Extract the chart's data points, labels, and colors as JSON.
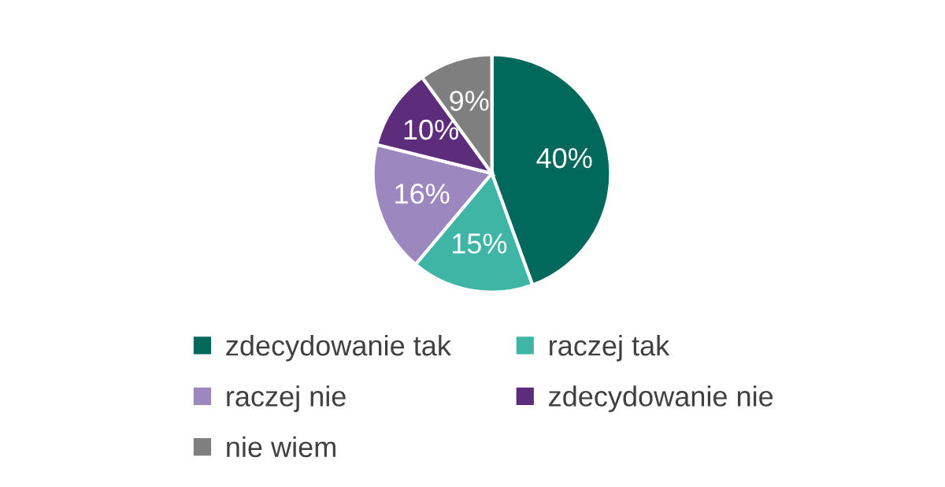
{
  "chart_data": {
    "type": "pie",
    "categories": [
      "zdecydowanie tak",
      "raczej tak",
      "raczej nie",
      "zdecydowanie nie",
      "nie wiem"
    ],
    "values": [
      40,
      15,
      16,
      10,
      9
    ],
    "value_labels": [
      "40%",
      "15%",
      "16%",
      "10%",
      "9%"
    ],
    "colors": [
      "#00695c",
      "#3fb5a6",
      "#9d87bf",
      "#5d2d7b",
      "#7f7f7f"
    ],
    "legend": "bottom"
  }
}
